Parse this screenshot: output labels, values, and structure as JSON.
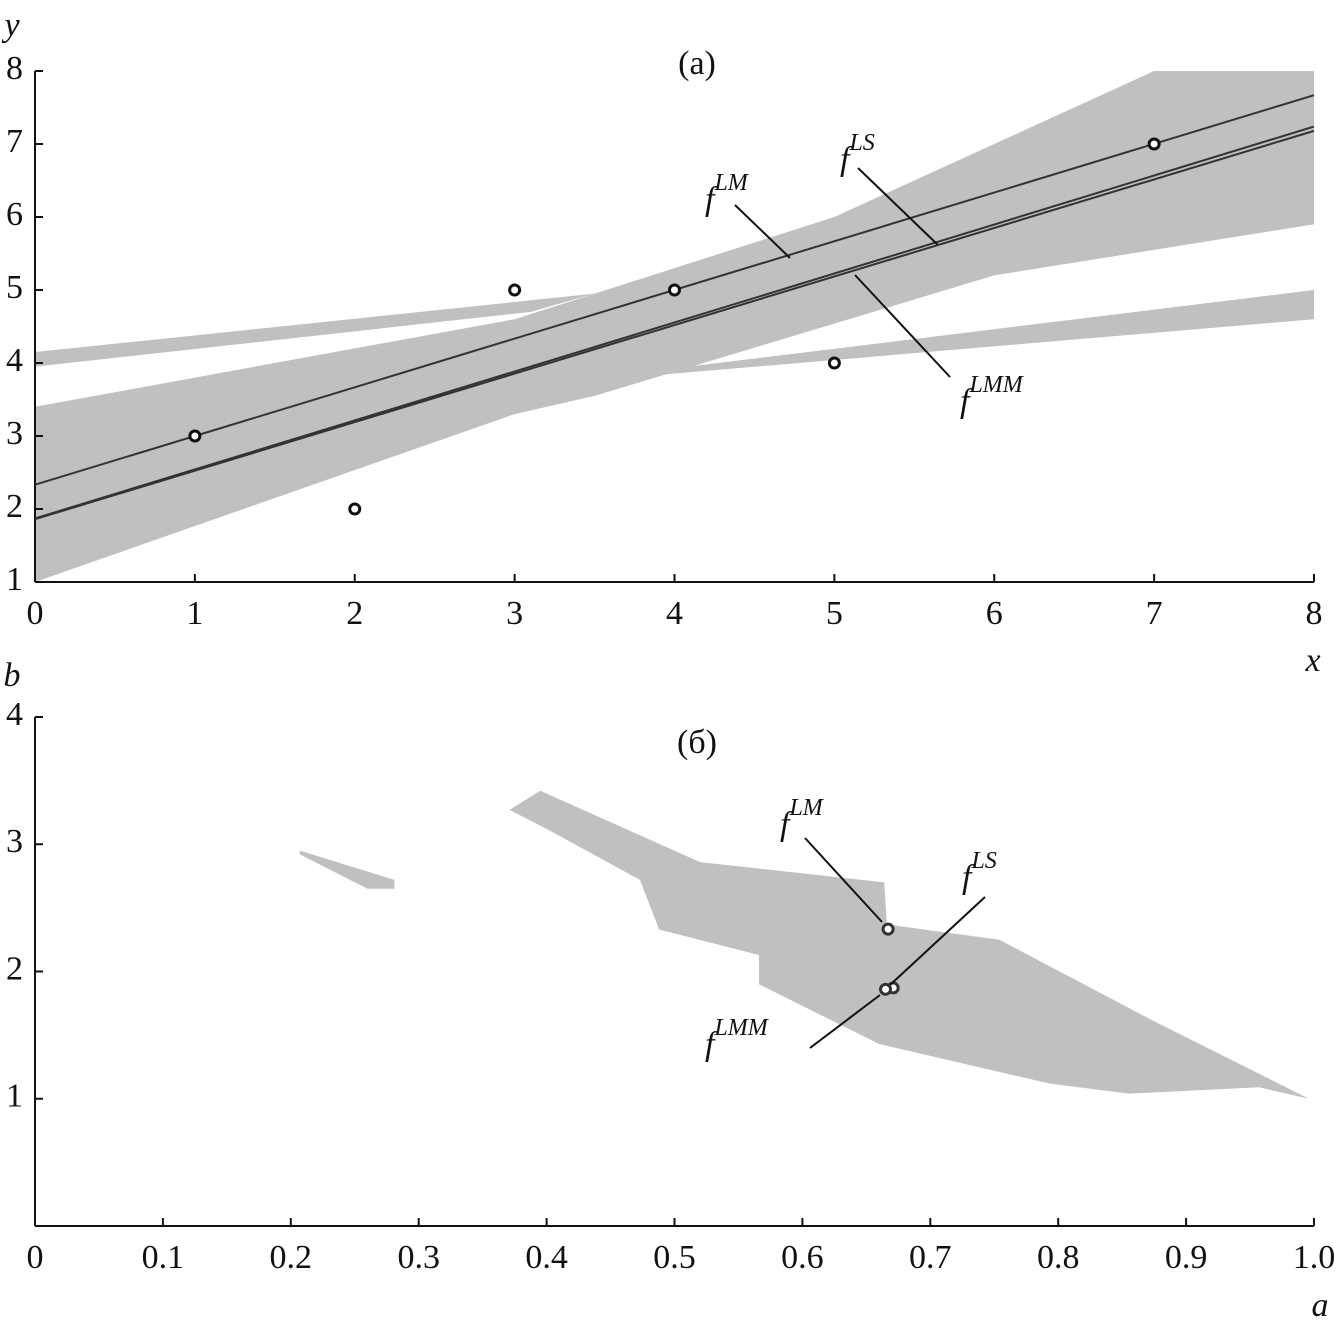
{
  "chart_data": [
    {
      "type": "line",
      "title": "(a)",
      "x_label": "x",
      "y_label": "y",
      "xlim": [
        0,
        8
      ],
      "ylim": [
        1,
        8
      ],
      "xticks": [
        0,
        1,
        2,
        3,
        4,
        5,
        6,
        7,
        8
      ],
      "yticks": [
        1,
        2,
        3,
        4,
        5,
        6,
        7,
        8
      ],
      "points": {
        "x": [
          1,
          2,
          3,
          4,
          5,
          7
        ],
        "y": [
          3,
          2,
          5,
          5,
          4,
          7
        ]
      },
      "series": [
        {
          "name_base": "f",
          "name_sup": "LM",
          "color": "#333333",
          "slope": 0.667,
          "intercept": 2.333
        },
        {
          "name_base": "f",
          "name_sup": "LS",
          "color": "#333333",
          "slope": 0.671,
          "intercept": 1.871
        },
        {
          "name_base": "f",
          "name_sup": "LMM",
          "color": "#333333",
          "slope": 0.665,
          "intercept": 1.86
        }
      ],
      "region_color": "#c0c0c0",
      "regions": [
        {
          "x": [
            0,
            3,
            3.5,
            6,
            8,
            8,
            7,
            5,
            3,
            0
          ],
          "y": [
            1,
            3.3,
            3.55,
            5.2,
            5.9,
            8,
            8,
            6,
            4.6,
            3.4
          ]
        },
        {
          "x": [
            0,
            0,
            3.5,
            3.1
          ],
          "y": [
            3.95,
            4.15,
            4.95,
            4.7
          ]
        },
        {
          "x": [
            3.7,
            8,
            8,
            3.9
          ],
          "y": [
            3.8,
            4.6,
            5,
            3.9
          ]
        }
      ]
    },
    {
      "type": "scatter",
      "title": "(б)",
      "x_label": "a",
      "y_label": "b",
      "xlim": [
        0,
        1
      ],
      "ylim": [
        0,
        4
      ],
      "xticks": [
        0,
        0.1,
        0.2,
        0.3,
        0.4,
        0.5,
        0.6,
        0.7,
        0.8,
        0.9,
        {
          "value": 1,
          "label": "1.0"
        }
      ],
      "yticks": [
        1,
        2,
        3,
        4
      ],
      "series": [
        {
          "name_base": "f",
          "name_sup": "LM",
          "color": "#333333",
          "x": [
            0.667
          ],
          "y": [
            2.333
          ]
        },
        {
          "name_base": "f",
          "name_sup": "LS",
          "color": "#333333",
          "x": [
            0.671
          ],
          "y": [
            1.871
          ]
        },
        {
          "name_base": "f",
          "name_sup": "LMM",
          "color": "#333333",
          "x": [
            0.665
          ],
          "y": [
            1.86
          ]
        }
      ],
      "region_color": "#c0c0c0",
      "regions": [
        {
          "x": [
            0.207,
            0.281,
            0.281,
            0.26,
            0.207
          ],
          "y": [
            2.95,
            2.72,
            2.65,
            2.65,
            2.92
          ]
        },
        {
          "x": [
            0.371,
            0.395,
            0.52,
            0.664,
            0.666,
            0.754,
            0.871,
            0.996,
            0.957,
            0.855,
            0.793,
            0.66,
            0.566,
            0.566,
            0.488,
            0.473,
            0.402
          ],
          "y": [
            3.27,
            3.42,
            2.86,
            2.7,
            2.37,
            2.25,
            1.63,
            1,
            1.09,
            1.04,
            1.12,
            1.43,
            1.9,
            2.13,
            2.33,
            2.72,
            3.11
          ]
        }
      ]
    }
  ]
}
